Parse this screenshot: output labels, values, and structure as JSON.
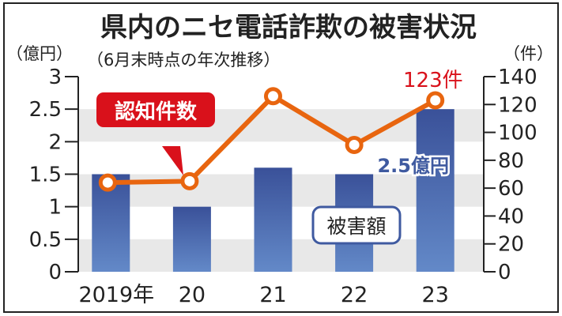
{
  "chart_data": {
    "type": "bar+line",
    "title": "県内のニセ電話詐欺の被害状況",
    "subtitle": "（6月末時点の年次推移）",
    "categories": [
      "2019年",
      "20",
      "21",
      "22",
      "23"
    ],
    "left_axis": {
      "unit_label": "（億円）",
      "ylim": [
        0,
        3
      ],
      "ticks": [
        "0",
        "0.5",
        "1",
        "1.5",
        "2",
        "2.5",
        "3"
      ]
    },
    "right_axis": {
      "unit_label": "（件）",
      "ylim": [
        0,
        140
      ],
      "ticks": [
        "0",
        "20",
        "40",
        "60",
        "80",
        "100",
        "120",
        "140"
      ]
    },
    "series": [
      {
        "name": "被害額",
        "type": "bar",
        "axis": "left",
        "values": [
          1.5,
          1.0,
          1.6,
          1.5,
          2.5
        ],
        "color": "#3f5aa0"
      },
      {
        "name": "認知件数",
        "type": "line",
        "axis": "right",
        "values": [
          64,
          65,
          126,
          91,
          123
        ],
        "color": "#e8650f"
      }
    ],
    "annotations": {
      "last_count": "123件",
      "last_amount": "2.5億円"
    },
    "legend": {
      "line_label": "認知件数",
      "bar_label": "被害額"
    },
    "grid_bands": true
  }
}
